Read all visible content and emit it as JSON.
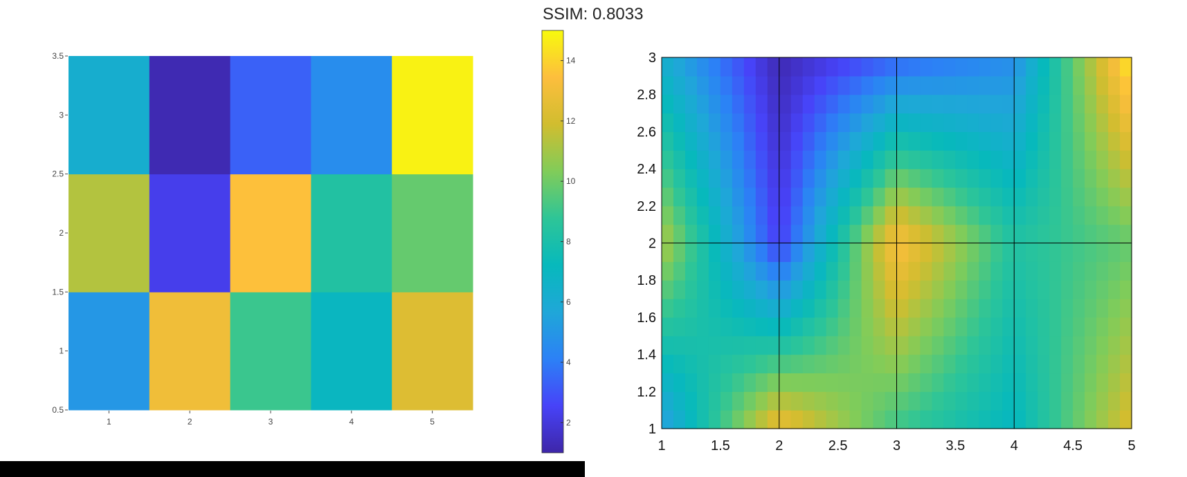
{
  "title": "SSIM: 0.8033",
  "colormap": [
    "#3e26a8",
    "#4743f8",
    "#2c81f6",
    "#1fa7d8",
    "#07b9bc",
    "#2ec597",
    "#81cc59",
    "#d1bd2f",
    "#fdbe3d",
    "#f8fa0d"
  ],
  "chart_data": [
    {
      "type": "heatmap",
      "name": "left-heatmap",
      "x": [
        1,
        2,
        3,
        4,
        5
      ],
      "y": [
        1,
        2,
        3
      ],
      "z": [
        [
          5.0,
          13.0,
          9.0,
          7.0,
          12.3
        ],
        [
          11.3,
          2.3,
          13.5,
          8.3,
          9.8
        ],
        [
          6.2,
          1.2,
          3.3,
          4.6,
          14.8
        ]
      ],
      "xlim": [
        0.5,
        5.5
      ],
      "ylim": [
        0.5,
        3.5
      ],
      "xticks": [
        "1",
        "2",
        "3",
        "4",
        "5"
      ],
      "yticks": [
        "0.5",
        "1",
        "1.5",
        "2",
        "2.5",
        "3",
        "3.5"
      ],
      "colorbar": {
        "range": [
          1,
          15
        ],
        "ticks": [
          "2",
          "4",
          "6",
          "8",
          "10",
          "12",
          "14"
        ]
      }
    },
    {
      "type": "heatmap",
      "name": "right-surface",
      "x": [
        1,
        2,
        3,
        4,
        5
      ],
      "y": [
        1,
        2,
        3
      ],
      "grid": true,
      "xlim": [
        1,
        5
      ],
      "ylim": [
        1,
        3
      ],
      "xticks": [
        "1",
        "1.5",
        "2",
        "2.5",
        "3",
        "3.5",
        "4",
        "4.5",
        "5"
      ],
      "yticks": [
        "1",
        "1.2",
        "1.4",
        "1.6",
        "1.8",
        "2",
        "2.2",
        "2.4",
        "2.6",
        "2.8",
        "3"
      ]
    }
  ]
}
